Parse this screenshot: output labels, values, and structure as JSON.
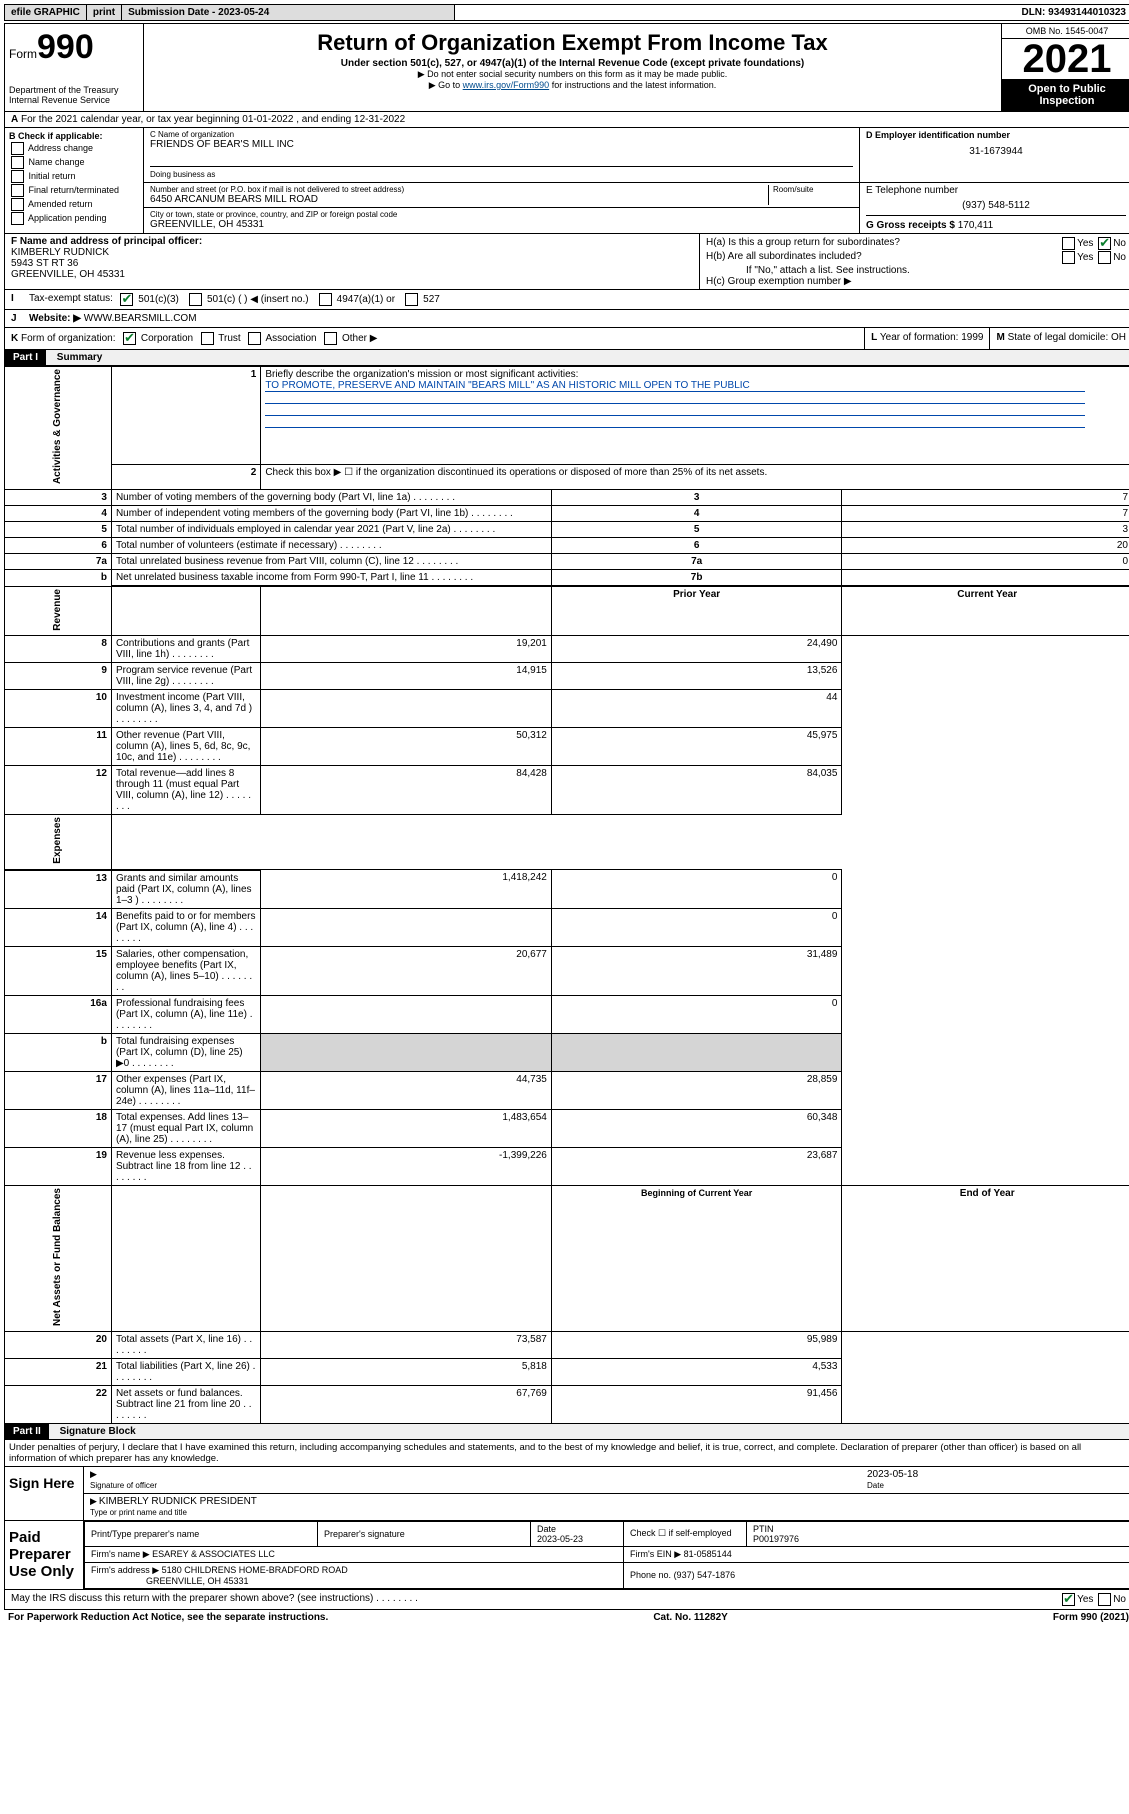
{
  "topbar": {
    "efile": "efile GRAPHIC",
    "print": "print",
    "sub_label": "Submission Date - 2023-05-24",
    "dln": "DLN: 93493144010323"
  },
  "header": {
    "form_label": "Form",
    "form_num": "990",
    "dept": "Department of the Treasury",
    "irs": "Internal Revenue Service",
    "title": "Return of Organization Exempt From Income Tax",
    "sub": "Under section 501(c), 527, or 4947(a)(1) of the Internal Revenue Code (except private foundations)",
    "note1": "▶ Do not enter social security numbers on this form as it may be made public.",
    "note2_pre": "▶ Go to ",
    "note2_link": "www.irs.gov/Form990",
    "note2_post": " for instructions and the latest information.",
    "omb": "OMB No. 1545-0047",
    "year": "2021",
    "open": "Open to Public Inspection"
  },
  "row_a": "For the 2021 calendar year, or tax year beginning 01-01-2022     , and ending 12-31-2022",
  "row_a_lbl": "A",
  "col_b": {
    "title": "B Check if applicable:",
    "items": [
      "Address change",
      "Name change",
      "Initial return",
      "Final return/terminated",
      "Amended return",
      "Application pending"
    ]
  },
  "col_c": {
    "name_lbl": "C Name of organization",
    "name": "FRIENDS OF BEAR'S MILL INC",
    "dba_lbl": "Doing business as",
    "dba": "",
    "street_lbl": "Number and street (or P.O. box if mail is not delivered to street address)",
    "room_lbl": "Room/suite",
    "street": "6450 ARCANUM BEARS MILL ROAD",
    "city_lbl": "City or town, state or province, country, and ZIP or foreign postal code",
    "city": "GREENVILLE, OH  45331"
  },
  "col_d": {
    "lbl": "D Employer identification number",
    "val": "31-1673944"
  },
  "col_e": {
    "lbl": "E Telephone number",
    "val": "(937) 548-5112"
  },
  "col_g": {
    "lbl": "G Gross receipts $",
    "val": "170,411"
  },
  "col_f": {
    "lbl": "F  Name and address of principal officer:",
    "name": "KIMBERLY RUDNICK",
    "addr1": "5943 ST RT 36",
    "addr2": "GREENVILLE, OH  45331"
  },
  "col_h": {
    "a": "H(a)  Is this a group return for subordinates?",
    "b": "H(b)  Are all subordinates included?",
    "b_note": "If \"No,\" attach a list. See instructions.",
    "c": "H(c)  Group exemption number ▶",
    "yes": "Yes",
    "no": "No"
  },
  "row_i": {
    "lbl": "I",
    "text": "Tax-exempt status:",
    "opts": [
      "501(c)(3)",
      "501(c) (  ) ◀ (insert no.)",
      "4947(a)(1) or",
      "527"
    ]
  },
  "row_j": {
    "lbl": "J",
    "text": "Website: ▶",
    "val": "WWW.BEARSMILL.COM"
  },
  "row_k": {
    "lbl": "K",
    "text": "Form of organization:",
    "opts": [
      "Corporation",
      "Trust",
      "Association",
      "Other ▶"
    ]
  },
  "row_l": {
    "lbl": "L",
    "text": "Year of formation: 1999"
  },
  "row_m": {
    "lbl": "M",
    "text": "State of legal domicile: OH"
  },
  "part1": {
    "hdr": "Part I",
    "title": "Summary"
  },
  "summary": {
    "q1_lbl": "1",
    "q1": "Briefly describe the organization's mission or most significant activities:",
    "q1_val": "TO PROMOTE, PRESERVE AND MAINTAIN \"BEARS MILL\" AS AN HISTORIC MILL OPEN TO THE PUBLIC",
    "q2_lbl": "2",
    "q2": "Check this box ▶ ☐  if the organization discontinued its operations or disposed of more than 25% of its net assets.",
    "sides": {
      "gov": "Activities & Governance",
      "rev": "Revenue",
      "exp": "Expenses",
      "net": "Net Assets or Fund Balances"
    },
    "gov_rows": [
      {
        "n": "3",
        "t": "Number of voting members of the governing body (Part VI, line 1a)",
        "k": "3",
        "v": "7"
      },
      {
        "n": "4",
        "t": "Number of independent voting members of the governing body (Part VI, line 1b)",
        "k": "4",
        "v": "7"
      },
      {
        "n": "5",
        "t": "Total number of individuals employed in calendar year 2021 (Part V, line 2a)",
        "k": "5",
        "v": "3"
      },
      {
        "n": "6",
        "t": "Total number of volunteers (estimate if necessary)",
        "k": "6",
        "v": "20"
      },
      {
        "n": "7a",
        "t": "Total unrelated business revenue from Part VIII, column (C), line 12",
        "k": "7a",
        "v": "0"
      },
      {
        "n": "b",
        "t": "Net unrelated business taxable income from Form 990-T, Part I, line 11",
        "k": "7b",
        "v": ""
      }
    ],
    "col_hdr_prior": "Prior Year",
    "col_hdr_curr": "Current Year",
    "rev_rows": [
      {
        "n": "8",
        "t": "Contributions and grants (Part VIII, line 1h)",
        "p": "19,201",
        "c": "24,490"
      },
      {
        "n": "9",
        "t": "Program service revenue (Part VIII, line 2g)",
        "p": "14,915",
        "c": "13,526"
      },
      {
        "n": "10",
        "t": "Investment income (Part VIII, column (A), lines 3, 4, and 7d )",
        "p": "",
        "c": "44"
      },
      {
        "n": "11",
        "t": "Other revenue (Part VIII, column (A), lines 5, 6d, 8c, 9c, 10c, and 11e)",
        "p": "50,312",
        "c": "45,975"
      },
      {
        "n": "12",
        "t": "Total revenue—add lines 8 through 11 (must equal Part VIII, column (A), line 12)",
        "p": "84,428",
        "c": "84,035"
      }
    ],
    "exp_rows": [
      {
        "n": "13",
        "t": "Grants and similar amounts paid (Part IX, column (A), lines 1–3 )",
        "p": "1,418,242",
        "c": "0"
      },
      {
        "n": "14",
        "t": "Benefits paid to or for members (Part IX, column (A), line 4)",
        "p": "",
        "c": "0"
      },
      {
        "n": "15",
        "t": "Salaries, other compensation, employee benefits (Part IX, column (A), lines 5–10)",
        "p": "20,677",
        "c": "31,489"
      },
      {
        "n": "16a",
        "t": "Professional fundraising fees (Part IX, column (A), line 11e)",
        "p": "",
        "c": "0"
      },
      {
        "n": "b",
        "t": "Total fundraising expenses (Part IX, column (D), line 25) ▶0",
        "p": "grey",
        "c": "grey"
      },
      {
        "n": "17",
        "t": "Other expenses (Part IX, column (A), lines 11a–11d, 11f–24e)",
        "p": "44,735",
        "c": "28,859"
      },
      {
        "n": "18",
        "t": "Total expenses. Add lines 13–17 (must equal Part IX, column (A), line 25)",
        "p": "1,483,654",
        "c": "60,348"
      },
      {
        "n": "19",
        "t": "Revenue less expenses. Subtract line 18 from line 12",
        "p": "-1,399,226",
        "c": "23,687"
      }
    ],
    "net_hdr_beg": "Beginning of Current Year",
    "net_hdr_end": "End of Year",
    "net_rows": [
      {
        "n": "20",
        "t": "Total assets (Part X, line 16)",
        "p": "73,587",
        "c": "95,989"
      },
      {
        "n": "21",
        "t": "Total liabilities (Part X, line 26)",
        "p": "5,818",
        "c": "4,533"
      },
      {
        "n": "22",
        "t": "Net assets or fund balances. Subtract line 21 from line 20",
        "p": "67,769",
        "c": "91,456"
      }
    ]
  },
  "part2": {
    "hdr": "Part II",
    "title": "Signature Block"
  },
  "penalties": "Under penalties of perjury, I declare that I have examined this return, including accompanying schedules and statements, and to the best of my knowledge and belief, it is true, correct, and complete. Declaration of preparer (other than officer) is based on all information of which preparer has any knowledge.",
  "sign": {
    "here": "Sign Here",
    "sig_lbl": "Signature of officer",
    "date_lbl": "Date",
    "date": "2023-05-18",
    "name": "KIMBERLY RUDNICK  PRESIDENT",
    "name_lbl": "Type or print name and title"
  },
  "prep": {
    "side": "Paid Preparer Use Only",
    "cols": [
      "Print/Type preparer's name",
      "Preparer's signature",
      "Date",
      "",
      "PTIN"
    ],
    "date": "2023-05-23",
    "check_lbl": "Check ☐ if self-employed",
    "ptin": "P00197976",
    "firm_name_lbl": "Firm's name    ▶",
    "firm_name": "ESAREY & ASSOCIATES LLC",
    "firm_ein_lbl": "Firm's EIN ▶",
    "firm_ein": "81-0585144",
    "firm_addr_lbl": "Firm's address ▶",
    "firm_addr1": "5180 CHILDRENS HOME-BRADFORD ROAD",
    "firm_addr2": "GREENVILLE, OH  45331",
    "phone_lbl": "Phone no.",
    "phone": "(937) 547-1876"
  },
  "may_discuss": "May the IRS discuss this return with the preparer shown above? (see instructions)",
  "footer": {
    "left": "For Paperwork Reduction Act Notice, see the separate instructions.",
    "mid": "Cat. No. 11282Y",
    "right": "Form 990 (2021)"
  }
}
